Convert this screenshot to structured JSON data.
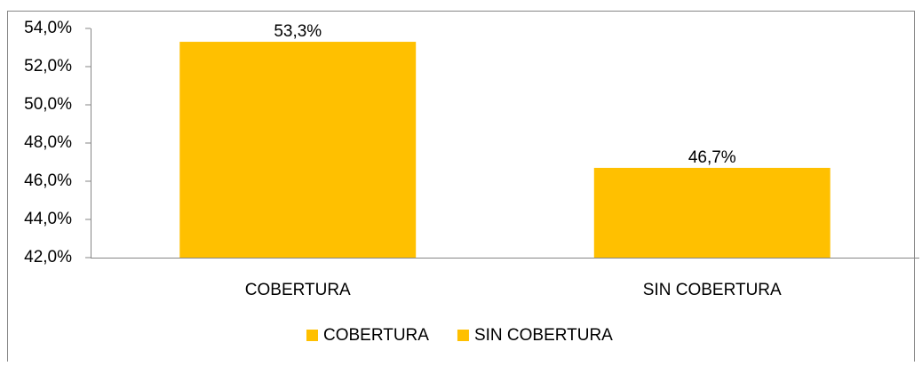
{
  "chart_data": {
    "type": "bar",
    "categories": [
      "COBERTURA",
      "SIN COBERTURA"
    ],
    "series": [
      {
        "name": "COBERTURA",
        "color": "#ffc000",
        "values": [
          53.3,
          null
        ],
        "value_labels": [
          "53,3%",
          null
        ]
      },
      {
        "name": "SIN COBERTURA",
        "color": "#ffc000",
        "values": [
          null,
          46.7
        ],
        "value_labels": [
          null,
          "46,7%"
        ]
      }
    ],
    "ylim": [
      42,
      54
    ],
    "yticks": [
      {
        "value": 42,
        "label": "42,0%"
      },
      {
        "value": 44,
        "label": "44,0%"
      },
      {
        "value": 46,
        "label": "46,0%"
      },
      {
        "value": 48,
        "label": "48,0%"
      },
      {
        "value": 50,
        "label": "50,0%"
      },
      {
        "value": 52,
        "label": "52,0%"
      },
      {
        "value": 54,
        "label": "54,0%"
      }
    ],
    "grid": false,
    "legend": "bottom"
  }
}
